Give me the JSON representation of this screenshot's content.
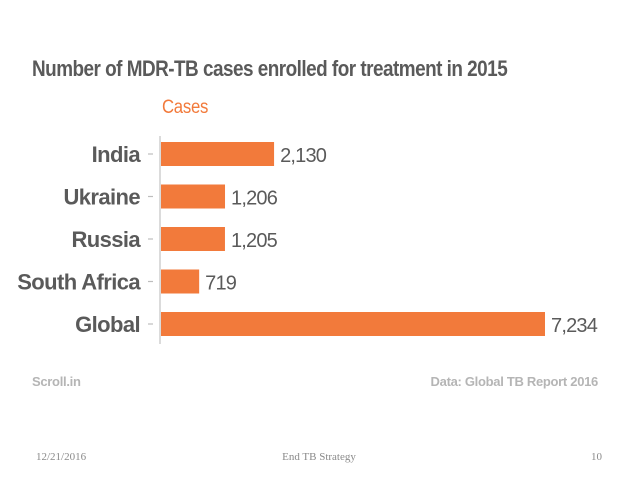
{
  "chart_data": {
    "type": "bar",
    "orientation": "horizontal",
    "title": "Number of MDR-TB cases enrolled for treatment in 2015",
    "categories": [
      "India",
      "Ukraine",
      "Russia",
      "South Africa",
      "Global"
    ],
    "series": [
      {
        "name": "Cases",
        "values": [
          2130,
          1206,
          1205,
          719,
          7234
        ]
      }
    ],
    "value_labels": [
      "2,130",
      "1,206",
      "1,205",
      "719",
      "7,234"
    ],
    "xlim": [
      0,
      7234
    ],
    "grid": false,
    "legend": "top-left",
    "colors": {
      "bar": "#f27a3b",
      "category_text": "#5a5a5a",
      "value_text": "#5a5a5a"
    }
  },
  "source": {
    "left": "Scroll.in",
    "right": "Data: Global TB Report 2016"
  },
  "footer": {
    "date": "12/21/2016",
    "title": "End TB Strategy",
    "page": "10"
  }
}
